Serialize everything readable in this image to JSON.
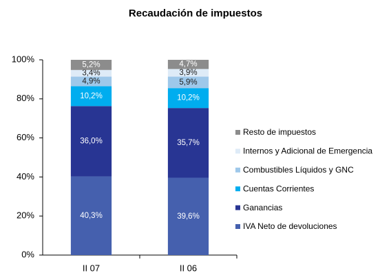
{
  "chart_data": {
    "type": "stacked_bar",
    "title": "Recaudación de impuestos",
    "categories": [
      "II 07",
      "II 06"
    ],
    "series": [
      {
        "name": "IVA Neto de devoluciones",
        "color": "#4560ae",
        "values": [
          40.3,
          39.6
        ],
        "value_labels": [
          "40,3%",
          "39,6%"
        ]
      },
      {
        "name": "Ganancias",
        "color": "#283593",
        "values": [
          36.0,
          35.7
        ],
        "value_labels": [
          "36,0%",
          "35,7%"
        ]
      },
      {
        "name": "Cuentas Corrientes",
        "color": "#00adef",
        "values": [
          10.2,
          10.2
        ],
        "value_labels": [
          "10,2%",
          "10,2%"
        ]
      },
      {
        "name": "Combustibles Líquidos y GNC",
        "color": "#9ec8ea",
        "values": [
          4.9,
          5.9
        ],
        "value_labels": [
          "4,9%",
          "5,9%"
        ]
      },
      {
        "name": "Internos y Adicional de Emergencia",
        "color": "#deebf7",
        "values": [
          3.4,
          3.9
        ],
        "value_labels": [
          "3,4%",
          "3,9%"
        ]
      },
      {
        "name": "Resto de impuestos",
        "color": "#8c8c8c",
        "values": [
          5.2,
          4.7
        ],
        "value_labels": [
          "5,2%",
          "4,7%"
        ]
      }
    ],
    "ylim": [
      0,
      100
    ],
    "yticks": [
      {
        "value": 0,
        "label": "0%"
      },
      {
        "value": 20,
        "label": "20%"
      },
      {
        "value": 40,
        "label": "40%"
      },
      {
        "value": 60,
        "label": "60%"
      },
      {
        "value": 80,
        "label": "80%"
      },
      {
        "value": 100,
        "label": "100%"
      }
    ],
    "legend": "right"
  }
}
